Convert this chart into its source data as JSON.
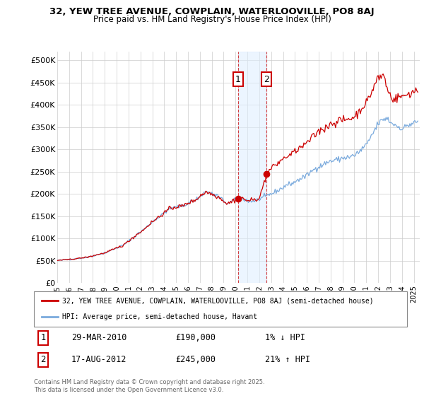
{
  "title_line1": "32, YEW TREE AVENUE, COWPLAIN, WATERLOOVILLE, PO8 8AJ",
  "title_line2": "Price paid vs. HM Land Registry's House Price Index (HPI)",
  "ylim": [
    0,
    520000
  ],
  "yticks": [
    0,
    50000,
    100000,
    150000,
    200000,
    250000,
    300000,
    350000,
    400000,
    450000,
    500000
  ],
  "ytick_labels": [
    "£0",
    "£50K",
    "£100K",
    "£150K",
    "£200K",
    "£250K",
    "£300K",
    "£350K",
    "£400K",
    "£450K",
    "£500K"
  ],
  "hpi_color": "#7aaadd",
  "price_color": "#cc0000",
  "transaction1_date": 2010.22,
  "transaction1_price": 190000,
  "transaction2_date": 2012.62,
  "transaction2_price": 245000,
  "legend_line1": "32, YEW TREE AVENUE, COWPLAIN, WATERLOOVILLE, PO8 8AJ (semi-detached house)",
  "legend_line2": "HPI: Average price, semi-detached house, Havant",
  "note1_label": "1",
  "note1_date": "29-MAR-2010",
  "note1_price": "£190,000",
  "note1_pct": "1% ↓ HPI",
  "note2_label": "2",
  "note2_date": "17-AUG-2012",
  "note2_price": "£245,000",
  "note2_pct": "21% ↑ HPI",
  "copyright": "Contains HM Land Registry data © Crown copyright and database right 2025.\nThis data is licensed under the Open Government Licence v3.0.",
  "xlim_left": 1995.0,
  "xlim_right": 2025.5
}
